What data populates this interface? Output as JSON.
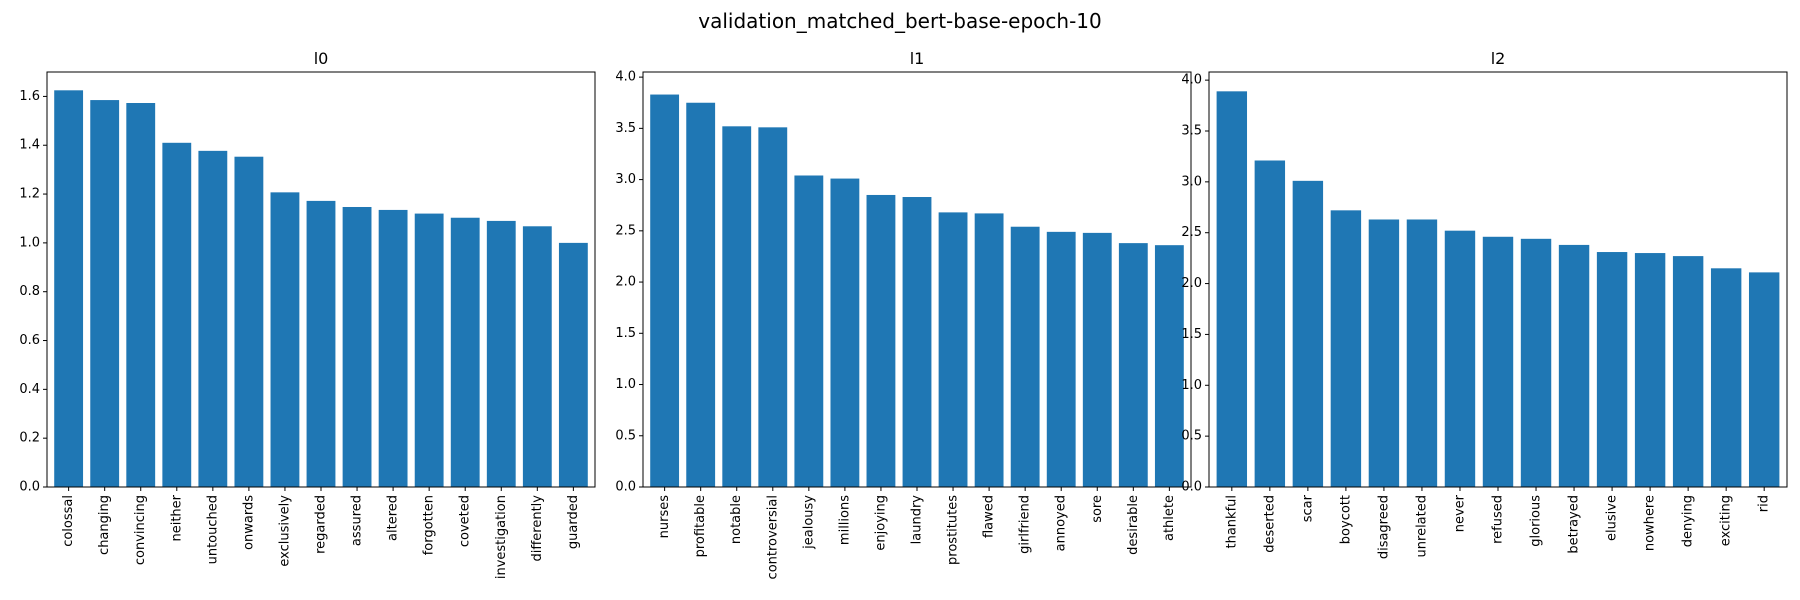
{
  "figure_title": "validation_matched_bert-base-epoch-10",
  "chart_data": [
    {
      "type": "bar",
      "title": "l0",
      "xlabel": "",
      "ylabel": "",
      "ylim": [
        0,
        1.7
      ],
      "yticks": [
        0.0,
        0.2,
        0.4,
        0.6,
        0.8,
        1.0,
        1.2,
        1.4,
        1.6
      ],
      "ytick_labels": [
        "0.0",
        "0.2",
        "0.4",
        "0.6",
        "0.8",
        "1.0",
        "1.2",
        "1.4",
        "1.6"
      ],
      "categories": [
        "colossal",
        "changing",
        "convincing",
        "neither",
        "untouched",
        "onwards",
        "exclusively",
        "regarded",
        "assured",
        "altered",
        "forgotten",
        "coveted",
        "investigation",
        "differently",
        "guarded"
      ],
      "values": [
        1.625,
        1.585,
        1.573,
        1.41,
        1.377,
        1.353,
        1.207,
        1.172,
        1.147,
        1.135,
        1.12,
        1.103,
        1.09,
        1.068,
        1.0
      ],
      "color": "#1f77b4",
      "grid": false
    },
    {
      "type": "bar",
      "title": "l1",
      "xlabel": "",
      "ylabel": "",
      "ylim": [
        0,
        4.05
      ],
      "yticks": [
        0.0,
        0.5,
        1.0,
        1.5,
        2.0,
        2.5,
        3.0,
        3.5,
        4.0
      ],
      "ytick_labels": [
        "0.0",
        "0.5",
        "1.0",
        "1.5",
        "2.0",
        "2.5",
        "3.0",
        "3.5",
        "4.0"
      ],
      "categories": [
        "nurses",
        "profitable",
        "notable",
        "controversial",
        "jealousy",
        "millions",
        "enjoying",
        "laundry",
        "prostitutes",
        "flawed",
        "girlfriend",
        "annoyed",
        "sore",
        "desirable",
        "athlete"
      ],
      "values": [
        3.83,
        3.75,
        3.52,
        3.51,
        3.04,
        3.01,
        2.85,
        2.83,
        2.68,
        2.67,
        2.54,
        2.49,
        2.48,
        2.38,
        2.36
      ],
      "color": "#1f77b4",
      "grid": false
    },
    {
      "type": "bar",
      "title": "l2",
      "xlabel": "",
      "ylabel": "",
      "ylim": [
        0,
        4.08
      ],
      "yticks": [
        0.0,
        0.5,
        1.0,
        1.5,
        2.0,
        2.5,
        3.0,
        3.5,
        4.0
      ],
      "ytick_labels": [
        "0.0",
        "0.5",
        "1.0",
        "1.5",
        "2.0",
        "2.5",
        "3.0",
        "3.5",
        "4.0"
      ],
      "categories": [
        "thankful",
        "deserted",
        "scar",
        "boycott",
        "disagreed",
        "unrelated",
        "never",
        "refused",
        "glorious",
        "betrayed",
        "elusive",
        "nowhere",
        "denying",
        "exciting",
        "rid"
      ],
      "values": [
        3.89,
        3.21,
        3.01,
        2.72,
        2.63,
        2.63,
        2.52,
        2.46,
        2.44,
        2.38,
        2.31,
        2.3,
        2.27,
        2.15,
        2.11
      ],
      "color": "#1f77b4",
      "grid": false
    }
  ]
}
